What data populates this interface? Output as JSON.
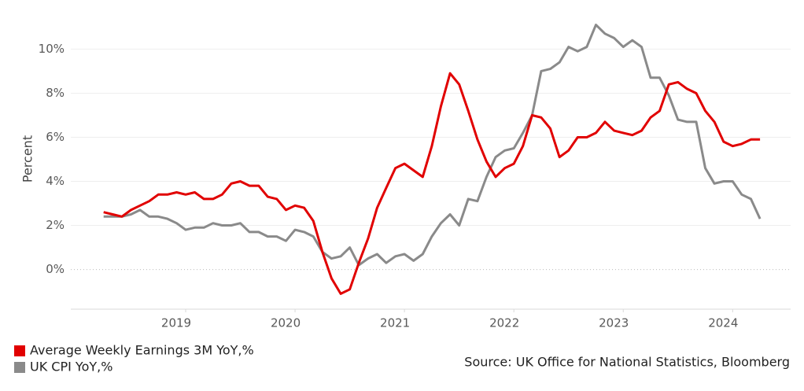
{
  "chart_data": {
    "type": "line",
    "y_label": "Percent",
    "source": "Source: UK Office for National Statistics, Bloomberg",
    "x": [
      2018.25,
      2018.333,
      2018.417,
      2018.5,
      2018.583,
      2018.667,
      2018.75,
      2018.833,
      2018.917,
      2019.0,
      2019.083,
      2019.167,
      2019.25,
      2019.333,
      2019.417,
      2019.5,
      2019.583,
      2019.667,
      2019.75,
      2019.833,
      2019.917,
      2020.0,
      2020.083,
      2020.167,
      2020.25,
      2020.333,
      2020.417,
      2020.5,
      2020.583,
      2020.667,
      2020.75,
      2020.833,
      2020.917,
      2021.0,
      2021.083,
      2021.167,
      2021.25,
      2021.333,
      2021.417,
      2021.5,
      2021.583,
      2021.667,
      2021.75,
      2021.833,
      2021.917,
      2022.0,
      2022.083,
      2022.167,
      2022.25,
      2022.333,
      2022.417,
      2022.5,
      2022.583,
      2022.667,
      2022.75,
      2022.833,
      2022.917,
      2023.0,
      2023.083,
      2023.167,
      2023.25,
      2023.333,
      2023.417,
      2023.5,
      2023.583,
      2023.667,
      2023.75,
      2023.833,
      2023.917,
      2024.0,
      2024.083,
      2024.167,
      2024.25
    ],
    "series": [
      {
        "name": "Average Weekly Earnings 3M YoY,%",
        "color": "#e10000",
        "values": [
          2.6,
          2.5,
          2.4,
          2.7,
          2.9,
          3.1,
          3.4,
          3.4,
          3.5,
          3.4,
          3.5,
          3.2,
          3.2,
          3.4,
          3.9,
          4.0,
          3.8,
          3.8,
          3.3,
          3.2,
          2.7,
          2.9,
          2.8,
          2.2,
          0.8,
          -0.4,
          -1.1,
          -0.9,
          0.3,
          1.4,
          2.8,
          3.7,
          4.6,
          4.8,
          4.5,
          4.2,
          5.6,
          7.4,
          8.9,
          8.4,
          7.2,
          5.9,
          4.9,
          4.2,
          4.6,
          4.8,
          5.6,
          7.0,
          6.9,
          6.4,
          5.1,
          5.4,
          6.0,
          6.0,
          6.2,
          6.7,
          6.3,
          6.2,
          6.1,
          6.3,
          6.9,
          7.2,
          8.4,
          8.5,
          8.2,
          8.0,
          7.2,
          6.7,
          5.8,
          5.6,
          5.7,
          5.9,
          5.9
        ]
      },
      {
        "name": "UK CPI YoY,%",
        "color": "#8a8a8a",
        "values": [
          2.4,
          2.4,
          2.4,
          2.5,
          2.7,
          2.4,
          2.4,
          2.3,
          2.1,
          1.8,
          1.9,
          1.9,
          2.1,
          2.0,
          2.0,
          2.1,
          1.7,
          1.7,
          1.5,
          1.5,
          1.3,
          1.8,
          1.7,
          1.5,
          0.8,
          0.5,
          0.6,
          1.0,
          0.2,
          0.5,
          0.7,
          0.3,
          0.6,
          0.7,
          0.4,
          0.7,
          1.5,
          2.1,
          2.5,
          2.0,
          3.2,
          3.1,
          4.2,
          5.1,
          5.4,
          5.5,
          6.2,
          7.0,
          9.0,
          9.1,
          9.4,
          10.1,
          9.9,
          10.1,
          11.1,
          10.7,
          10.5,
          10.1,
          10.4,
          10.1,
          8.7,
          8.7,
          7.9,
          6.8,
          6.7,
          6.7,
          4.6,
          3.9,
          4.0,
          4.0,
          3.4,
          3.2,
          2.3
        ]
      }
    ],
    "xlim": [
      2017.95,
      2024.53
    ],
    "xticks": [
      2019,
      2020,
      2021,
      2022,
      2023,
      2024
    ],
    "ylim": [
      -1.8,
      11.8
    ],
    "yticks": [
      {
        "value": 0,
        "label": "0%"
      },
      {
        "value": 2,
        "label": "2%"
      },
      {
        "value": 4,
        "label": "4%"
      },
      {
        "value": 6,
        "label": "6%"
      },
      {
        "value": 8,
        "label": "8%"
      },
      {
        "value": 10,
        "label": "10%"
      }
    ],
    "grid": true,
    "legend": "bottom-left"
  }
}
